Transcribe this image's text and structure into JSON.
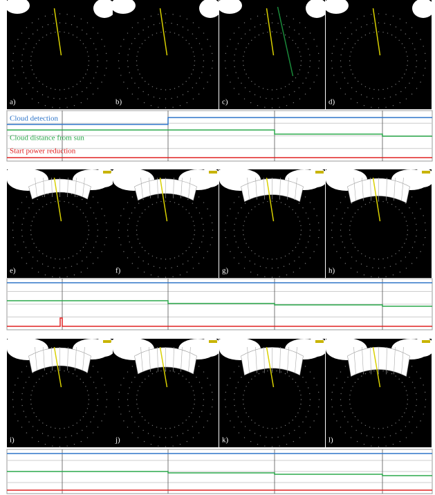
{
  "panel_labels": [
    "a)",
    "b)",
    "c)",
    "d)",
    "e)",
    "f)",
    "g)",
    "h)",
    "i)",
    "j)",
    "k)",
    "l)"
  ],
  "legend": {
    "cloud_detection": "Cloud detection",
    "cloud_distance": "Cloud distance from sun",
    "power_reduction": "Start power reduction"
  }
}
